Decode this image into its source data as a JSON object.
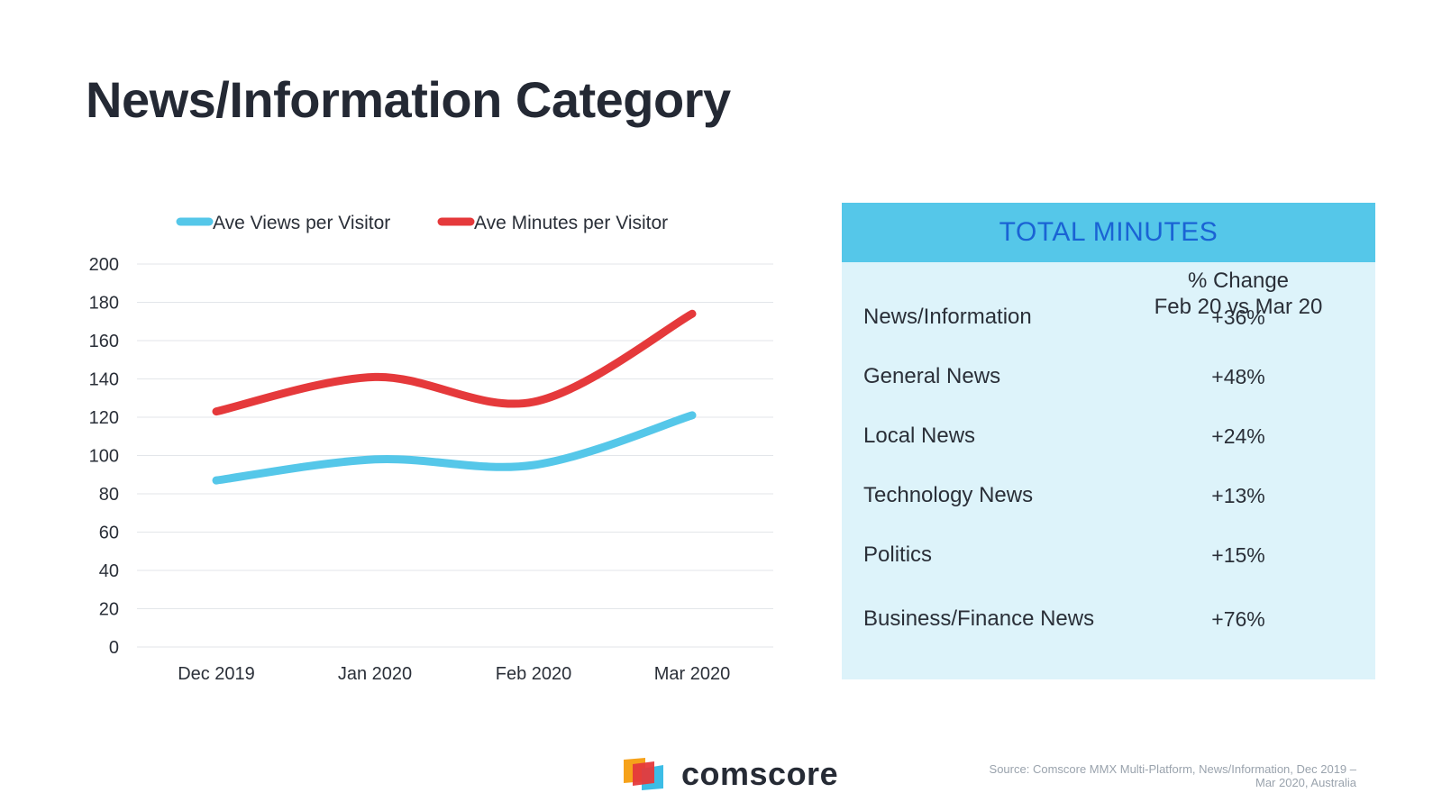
{
  "page": {
    "title": "News/Information Category"
  },
  "chart_data": {
    "type": "line",
    "categories": [
      "Dec 2019",
      "Jan 2020",
      "Feb 2020",
      "Mar 2020"
    ],
    "series": [
      {
        "name": "Ave Views per Visitor",
        "values": [
          87,
          98,
          95,
          121
        ],
        "color": "#55c7e9"
      },
      {
        "name": "Ave Minutes per Visitor",
        "values": [
          123,
          141,
          128,
          174
        ],
        "color": "#e5393b"
      }
    ],
    "title": "",
    "xlabel": "",
    "ylabel": "",
    "ylim": [
      0,
      200
    ],
    "yticks": [
      0,
      20,
      40,
      60,
      80,
      100,
      120,
      140,
      160,
      180,
      200
    ],
    "grid": true,
    "legend": "top"
  },
  "panel": {
    "title": "TOTAL MINUTES",
    "column_header_line1": "% Change",
    "column_header_line2": "Feb 20 vs Mar 20",
    "rows": [
      {
        "label": "News/Information",
        "value": "+36%"
      },
      {
        "label": "General News",
        "value": "+48%"
      },
      {
        "label": "Local News",
        "value": "+24%"
      },
      {
        "label": "Technology News",
        "value": "+13%"
      },
      {
        "label": "Politics",
        "value": "+15%"
      },
      {
        "label": "Business/Finance News",
        "value": "+76%"
      }
    ]
  },
  "footer": {
    "brand": "comscore",
    "source_line1": "Source: Comscore MMX Multi-Platform, News/Information, Dec 2019 –",
    "source_line2": "Mar 2020, Australia"
  },
  "colors": {
    "title_text": "#242934",
    "panel_header_bg": "#55c7e9",
    "panel_header_text": "#1a63d4",
    "panel_bg": "#ddf3fa",
    "logo_orange": "#f6a21a",
    "logo_red": "#e5393b",
    "logo_blue": "#3cbde6"
  }
}
